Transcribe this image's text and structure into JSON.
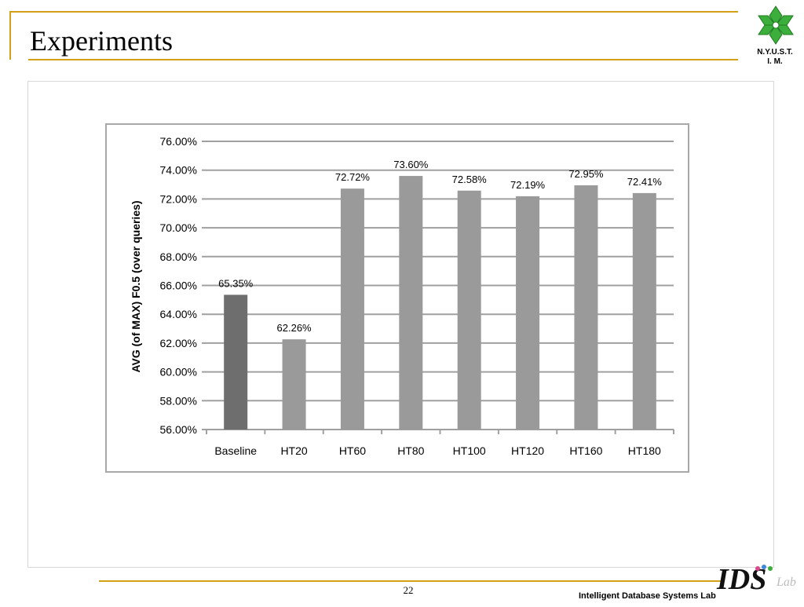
{
  "slide": {
    "title": "Experiments",
    "page_number": "22",
    "footer_lab": "Intelligent Database Systems Lab",
    "logo_caption_line1": "N.Y.U.S.T.",
    "logo_caption_line2": "I. M.",
    "ids_logo_text": "IDS",
    "ids_logo_suffix": "Lab",
    "accent_color": "#d4a017"
  },
  "chart_data": {
    "type": "bar",
    "title": "",
    "xlabel": "",
    "ylabel": "AVG (of MAX) F0.5 (over queries)",
    "categories": [
      "Baseline",
      "HT20",
      "HT60",
      "HT80",
      "HT100",
      "HT120",
      "HT160",
      "HT180"
    ],
    "values": [
      65.35,
      62.26,
      72.72,
      73.6,
      72.58,
      72.19,
      72.95,
      72.41
    ],
    "value_labels": [
      "65.35%",
      "62.26%",
      "72.72%",
      "73.60%",
      "72.58%",
      "72.19%",
      "72.95%",
      "72.41%"
    ],
    "ylim": [
      56,
      76
    ],
    "yticks": [
      "56.00%",
      "58.00%",
      "60.00%",
      "62.00%",
      "64.00%",
      "66.00%",
      "68.00%",
      "70.00%",
      "72.00%",
      "74.00%",
      "76.00%"
    ],
    "grid": true,
    "bar_colors": [
      "#6e6e6e",
      "#9a9a9a",
      "#9a9a9a",
      "#9a9a9a",
      "#9a9a9a",
      "#9a9a9a",
      "#9a9a9a",
      "#9a9a9a"
    ],
    "grid_color": "#a0a0a0"
  }
}
